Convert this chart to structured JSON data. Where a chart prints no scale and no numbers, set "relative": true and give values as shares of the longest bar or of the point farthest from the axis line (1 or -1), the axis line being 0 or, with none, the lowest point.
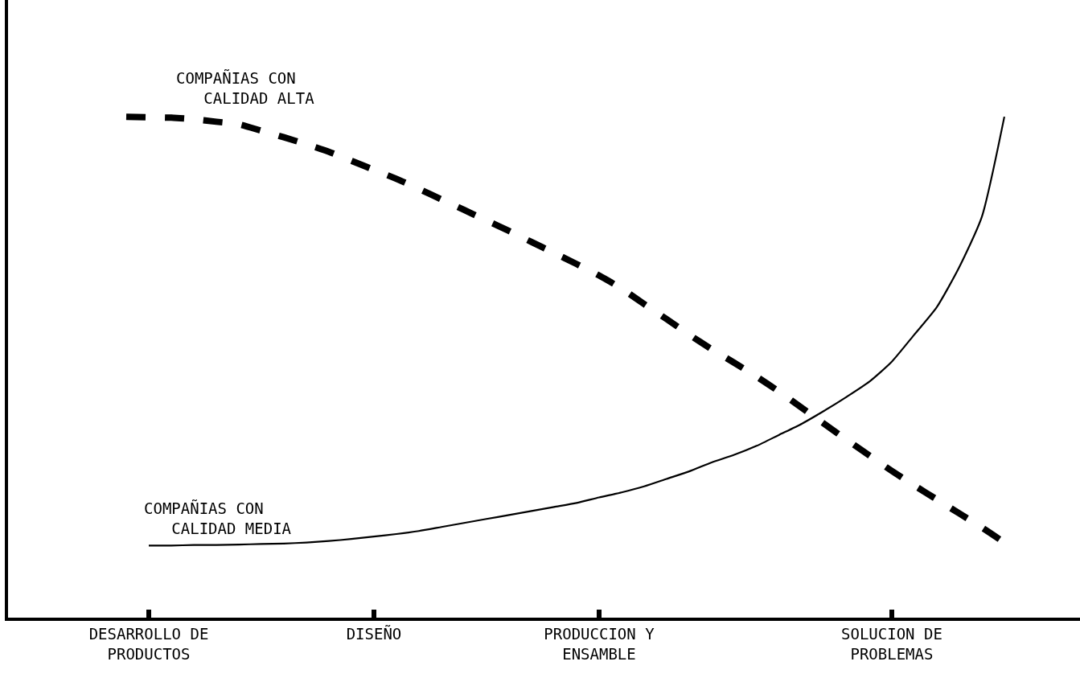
{
  "chart_data": {
    "type": "line",
    "relative": true,
    "categories": [
      null,
      "DESARROLLO DE PRODUCTOS",
      null,
      null,
      null,
      null,
      null,
      null,
      null,
      null,
      null,
      "DISEÑO",
      null,
      null,
      null,
      null,
      null,
      null,
      null,
      null,
      null,
      "PRODUCCION Y ENSAMBLE",
      null,
      null,
      null,
      null,
      null,
      null,
      null,
      null,
      null,
      null,
      null,
      null,
      "SOLUCION DE PROBLEMAS",
      null,
      null,
      null,
      null,
      null
    ],
    "tick_labels": "x",
    "grid": false,
    "legend": false,
    "marker": "none",
    "series": [
      {
        "name": "COMPAÑIAS CON CALIDAD ALTA",
        "color": "#000000",
        "line_style": "dashed",
        "values": [
          1.0,
          0.999,
          0.998,
          0.995,
          0.99,
          0.985,
          0.972,
          0.959,
          0.945,
          0.93,
          0.912,
          0.894,
          0.876,
          0.856,
          0.835,
          0.814,
          0.793,
          0.772,
          0.75,
          0.728,
          0.706,
          0.683,
          0.657,
          0.626,
          0.596,
          0.565,
          0.536,
          0.509,
          0.481,
          0.451,
          0.419,
          0.387,
          0.355,
          0.324,
          0.293,
          0.264,
          0.236,
          0.208,
          0.18,
          0.15
        ]
      },
      {
        "name": "COMPAÑIAS CON CALIDAD MEDIA",
        "color": "#000000",
        "line_style": "solid",
        "values": [
          null,
          0.144,
          0.144,
          0.145,
          0.145,
          0.146,
          0.147,
          0.148,
          0.15,
          0.153,
          0.157,
          0.162,
          0.167,
          0.173,
          0.181,
          0.189,
          0.197,
          0.205,
          0.213,
          0.221,
          0.229,
          0.24,
          0.25,
          0.262,
          0.277,
          0.292,
          0.31,
          0.325,
          0.343,
          0.365,
          0.387,
          0.413,
          0.441,
          0.471,
          0.511,
          0.565,
          0.62,
          0.7,
          0.8,
          1.0
        ]
      }
    ]
  }
}
